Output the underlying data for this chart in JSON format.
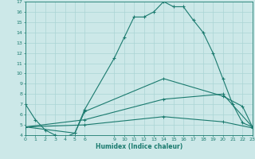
{
  "xlabel": "Humidex (Indice chaleur)",
  "bg_color": "#cce8e8",
  "line_color": "#1a7a6e",
  "grid_color": "#aad4d4",
  "ylim": [
    4,
    17
  ],
  "xlim": [
    0,
    23
  ],
  "yticks": [
    4,
    5,
    6,
    7,
    8,
    9,
    10,
    11,
    12,
    13,
    14,
    15,
    16,
    17
  ],
  "xticks": [
    0,
    1,
    2,
    3,
    4,
    5,
    6,
    9,
    10,
    11,
    12,
    13,
    14,
    15,
    16,
    17,
    18,
    19,
    20,
    21,
    22,
    23
  ],
  "line1_x": [
    0,
    1,
    2,
    3,
    4,
    5,
    6,
    9,
    10,
    11,
    12,
    13,
    14,
    15,
    16,
    17,
    18,
    19,
    20,
    21,
    22,
    23
  ],
  "line1_y": [
    7.0,
    5.5,
    4.5,
    4.0,
    3.8,
    4.2,
    6.5,
    11.5,
    13.5,
    15.5,
    15.5,
    16.0,
    17.0,
    16.5,
    16.5,
    15.2,
    14.0,
    12.0,
    9.5,
    7.0,
    5.2,
    4.8
  ],
  "line2_x": [
    0,
    5,
    6,
    14,
    20,
    22,
    23
  ],
  "line2_y": [
    4.8,
    4.2,
    6.3,
    9.5,
    7.8,
    6.8,
    4.8
  ],
  "line3_x": [
    0,
    6,
    14,
    20,
    23
  ],
  "line3_y": [
    4.8,
    5.5,
    7.5,
    8.0,
    4.8
  ],
  "line4_x": [
    0,
    6,
    14,
    20,
    23
  ],
  "line4_y": [
    4.8,
    5.0,
    5.8,
    5.3,
    4.7
  ]
}
